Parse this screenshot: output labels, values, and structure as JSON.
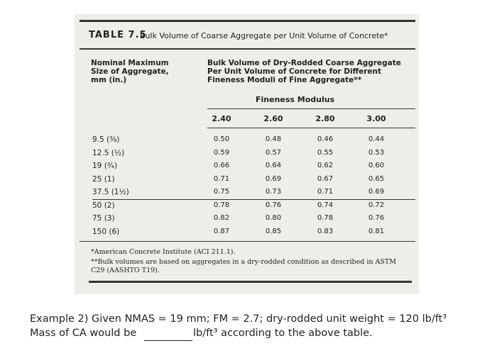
{
  "table": {
    "label": "TABLE 7.5",
    "title": "Bulk Volume of Coarse Aggregate per Unit Volume of Concrete*",
    "header": {
      "size": "Nominal Maximum Size of Aggregate, mm (in.)",
      "volume": "Bulk Volume of Dry-Rodded Coarse Aggregate Per Unit Volume of Concrete for Different Fineness Moduli of Fine Aggregate**",
      "group": "Fineness Modulus",
      "moduli": [
        "2.40",
        "2.60",
        "2.80",
        "3.00"
      ]
    },
    "rows": [
      [
        "9.5 (⅜)",
        "0.50",
        "0.48",
        "0.46",
        "0.44"
      ],
      [
        "12.5 (½)",
        "0.59",
        "0.57",
        "0.55",
        "0.53"
      ],
      [
        "19 (¾)",
        "0.66",
        "0.64",
        "0.62",
        "0.60"
      ],
      [
        "25 (1)",
        "0.71",
        "0.69",
        "0.67",
        "0.65"
      ],
      [
        "37.5 (1½)",
        "0.75",
        "0.73",
        "0.71",
        "0.69"
      ],
      [
        "50 (2)",
        "0.78",
        "0.76",
        "0.74",
        "0.72"
      ],
      [
        "75 (3)",
        "0.82",
        "0.80",
        "0.78",
        "0.76"
      ],
      [
        "150 (6)",
        "0.87",
        "0.85",
        "0.83",
        "0.81"
      ]
    ],
    "footnotes": [
      "*American Concrete Institute (ACI 211.1).",
      "**Bulk volumes are based on aggregates in a dry-rodded condition as described in ASTM C29 (AASHTO T19)."
    ]
  },
  "example": {
    "line1": "Example 2) Given NMAS = 19 mm; FM = 2.7; dry-rodded unit weight = 120 lb/ft³",
    "line2_start": "Mass of CA would be",
    "line2_end": "lb/ft³ according to the above table."
  }
}
